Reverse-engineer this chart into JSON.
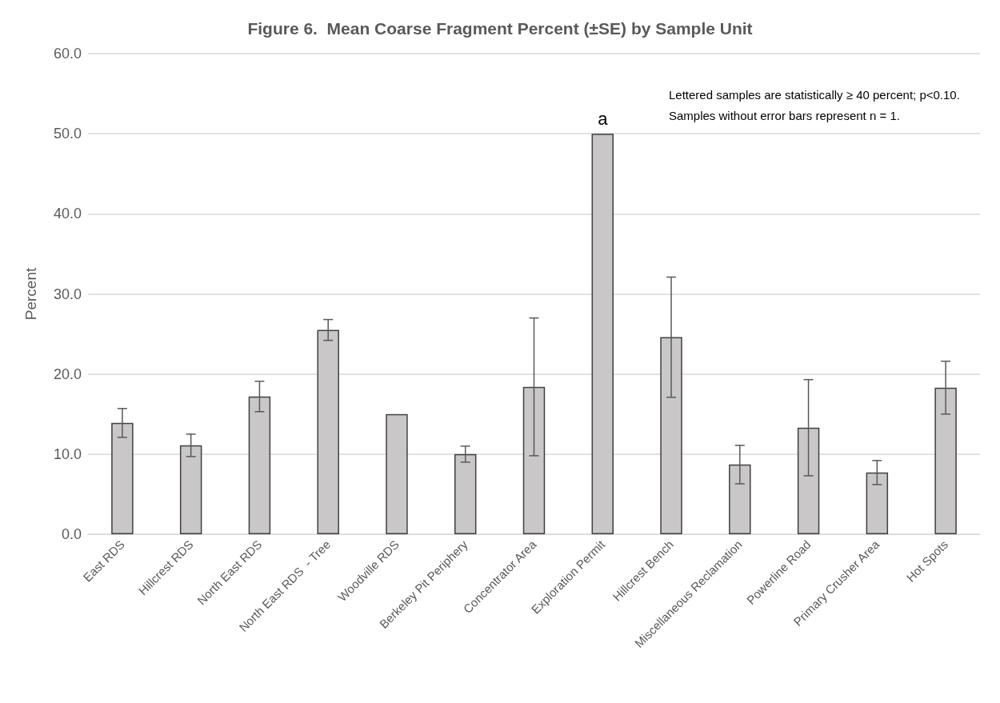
{
  "chart_data": {
    "type": "bar",
    "title": "Figure 6.  Mean Coarse Fragment Percent (±SE) by Sample Unit",
    "ylabel": "Percent",
    "categories": [
      "East RDS",
      "Hillcrest RDS",
      "North East RDS",
      "North East RDS  - Tree",
      "Woodville RDS",
      "Berkeley Pit Periphery",
      "Concentrator Area",
      "Exploration Permit",
      "Hillcrest Bench",
      "Miscellaneous Reclamation",
      "Powerline Road",
      "Primary Crusher Area",
      "Hot Spots"
    ],
    "values": [
      13.9,
      11.1,
      17.2,
      25.5,
      15.0,
      10.0,
      18.4,
      50.0,
      24.6,
      8.7,
      13.3,
      7.7,
      18.3
    ],
    "errors": [
      1.8,
      1.4,
      1.9,
      1.3,
      null,
      1.0,
      8.6,
      null,
      7.5,
      2.4,
      6.0,
      1.5,
      3.3
    ],
    "color": "#c9c7c8",
    "ylim": [
      0,
      60
    ],
    "yticks": [
      {
        "value": 0,
        "label": "0.0"
      },
      {
        "value": 10,
        "label": "10.0"
      },
      {
        "value": 20,
        "label": "20.0"
      },
      {
        "value": 30,
        "label": "30.0"
      },
      {
        "value": 40,
        "label": "40.0"
      },
      {
        "value": 50,
        "label": "50.0"
      },
      {
        "value": 60,
        "label": "60.0"
      }
    ],
    "grid": "y",
    "annotations": [
      {
        "text": "a",
        "x": "Exploration Permit",
        "y": 50
      },
      "Lettered samples are statistically ≥ 40 percent; p<0.10. Samples without error bars represent n = 1."
    ]
  }
}
